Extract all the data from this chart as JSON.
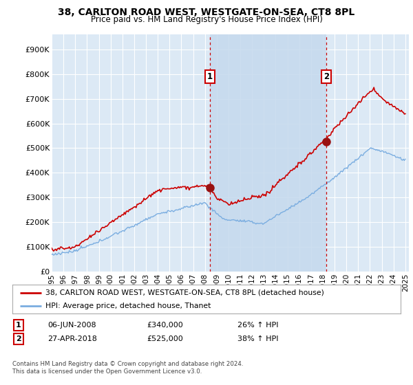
{
  "title": "38, CARLTON ROAD WEST, WESTGATE-ON-SEA, CT8 8PL",
  "subtitle": "Price paid vs. HM Land Registry's House Price Index (HPI)",
  "ylabel_ticks": [
    "£0",
    "£100K",
    "£200K",
    "£300K",
    "£400K",
    "£500K",
    "£600K",
    "£700K",
    "£800K",
    "£900K"
  ],
  "ytick_values": [
    0,
    100000,
    200000,
    300000,
    400000,
    500000,
    600000,
    700000,
    800000,
    900000
  ],
  "ylim": [
    0,
    960000
  ],
  "xlim_start": 1995.3,
  "xlim_end": 2025.3,
  "background_color": "#dce9f5",
  "plot_bg_color": "#dce9f5",
  "shade_color": "#c5d9ed",
  "grid_color": "#ffffff",
  "sale1_x": 2008.43,
  "sale1_y": 340000,
  "sale2_x": 2018.32,
  "sale2_y": 525000,
  "sale1_label": "1",
  "sale2_label": "2",
  "vline_color": "#cc0000",
  "vline_style": "--",
  "legend_line1": "38, CARLTON ROAD WEST, WESTGATE-ON-SEA, CT8 8PL (detached house)",
  "legend_line2": "HPI: Average price, detached house, Thanet",
  "annotation1": [
    "1",
    "06-JUN-2008",
    "£340,000",
    "26% ↑ HPI"
  ],
  "annotation2": [
    "2",
    "27-APR-2018",
    "£525,000",
    "38% ↑ HPI"
  ],
  "footer": "Contains HM Land Registry data © Crown copyright and database right 2024.\nThis data is licensed under the Open Government Licence v3.0.",
  "red_line_color": "#cc0000",
  "blue_line_color": "#7aade0",
  "sale_dot_color": "#991111",
  "xtick_years": [
    1995,
    1996,
    1997,
    1998,
    1999,
    2000,
    2001,
    2002,
    2003,
    2004,
    2005,
    2006,
    2007,
    2008,
    2009,
    2010,
    2011,
    2012,
    2013,
    2014,
    2015,
    2016,
    2017,
    2018,
    2019,
    2020,
    2021,
    2022,
    2023,
    2024,
    2025
  ]
}
